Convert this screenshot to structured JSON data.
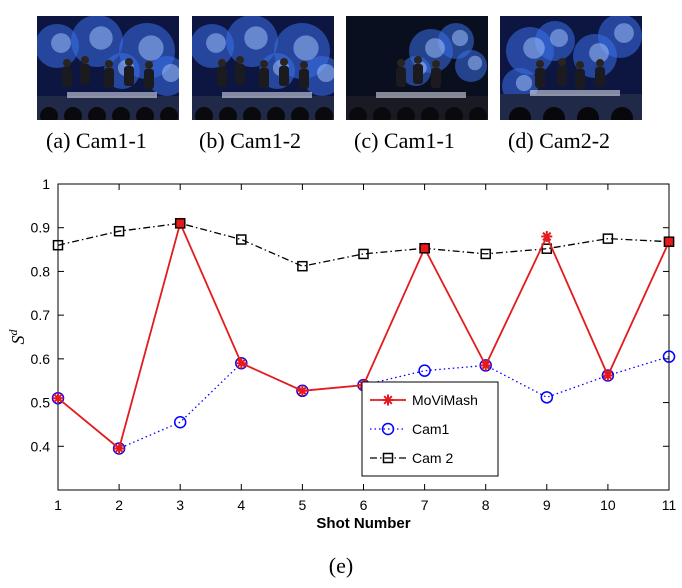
{
  "thumbnails": [
    {
      "caption": "(a) Cam1-1",
      "scene": "stage-front"
    },
    {
      "caption": "(b) Cam1-2",
      "scene": "stage-front"
    },
    {
      "caption": "(c) Cam1-1",
      "scene": "stage-dark"
    },
    {
      "caption": "(d) Cam2-2",
      "scene": "stage-side"
    }
  ],
  "figure_caption": "(e)",
  "chart_data": {
    "type": "line",
    "title": "",
    "xlabel": "Shot Number",
    "ylabel": "S",
    "ylabel_superscript": "d",
    "x": [
      1,
      2,
      3,
      4,
      5,
      6,
      7,
      8,
      9,
      10,
      11
    ],
    "xlim": [
      1,
      11
    ],
    "ylim": [
      0.3,
      1
    ],
    "yticks": [
      0.4,
      0.5,
      0.6,
      0.7,
      0.8,
      0.9,
      1
    ],
    "ytick_labels": [
      "0.4",
      "0.5",
      "0.6",
      "0.7",
      "0.8",
      "0.9",
      "1"
    ],
    "grid": false,
    "legend_position": "inside-lower-center",
    "series": [
      {
        "name": "MoViMash",
        "color": "#e41a1c",
        "line": "solid",
        "marker": "asterisk",
        "values": [
          0.51,
          0.395,
          0.91,
          0.59,
          0.527,
          0.54,
          0.853,
          0.585,
          0.88,
          0.562,
          0.868
        ]
      },
      {
        "name": "Cam1",
        "color": "#0000ff",
        "line": "dotted",
        "marker": "circle",
        "values": [
          0.51,
          0.395,
          0.455,
          0.59,
          0.527,
          0.54,
          0.573,
          0.585,
          0.512,
          0.562,
          0.605
        ]
      },
      {
        "name": "Cam 2",
        "color": "#000000",
        "line": "dashdot",
        "marker": "square",
        "values": [
          0.86,
          0.892,
          0.91,
          0.873,
          0.812,
          0.84,
          0.853,
          0.84,
          0.852,
          0.875,
          0.868
        ]
      }
    ]
  }
}
